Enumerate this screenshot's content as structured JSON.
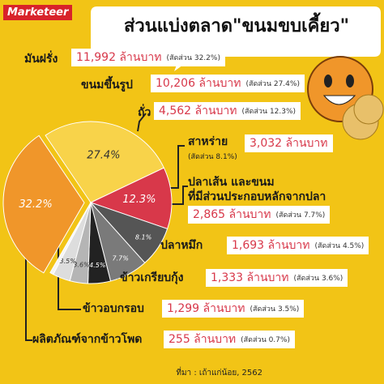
{
  "brand": "Marketeer",
  "source": "ที่มา : เถ้าแก่น้อย, 2562",
  "chart_data": {
    "type": "pie",
    "title": "ส่วนแบ่งตลาด\"ขนมขบเคี้ยว\"",
    "categories": [
      "มันฝรั่ง",
      "ขนมขึ้นรูป",
      "ถั่ว",
      "สาหร่าย",
      "ปลาเส้น และขนม\nที่มีส่วนประกอบหลักจากปลา",
      "ปลาหมึก",
      "ข้าวเกรียบกุ้ง",
      "ข้าวอบกรอบ",
      "ผลิตภัณฑ์จากข้าวโพด"
    ],
    "values": [
      32.2,
      27.4,
      12.3,
      8.1,
      7.7,
      4.5,
      3.6,
      3.5,
      0.7
    ],
    "value_labels": [
      "32.2%",
      "27.4%",
      "12.3%",
      "8.1%",
      "7.7%",
      "4.5%",
      "3.6%",
      "3.5%",
      null
    ],
    "amount_labels": [
      "11,992 ล้านบาท",
      "10,206 ล้านบาท",
      "4,562 ล้านบาท",
      "3,032 ล้านบาท",
      "2,865 ล้านบาท",
      "1,693 ล้านบาท",
      "1,333 ล้านบาท",
      "1,299 ล้านบาท",
      "255 ล้านบาท"
    ],
    "share_labels": [
      "(สัดส่วน 32.2%)",
      "(สัดส่วน 27.4%)",
      "(สัดส่วน 12.3%)",
      "(สัดส่วน 8.1%)",
      "(สัดส่วน 7.7%)",
      "(สัดส่วน 4.5%)",
      "(สัดส่วน 3.6%)",
      "(สัดส่วน 3.5%)",
      "(สัดส่วน 0.7%)"
    ],
    "colors": [
      "#f0962a",
      "#f8d34a",
      "#d8384a",
      "#555555",
      "#7a7a7a",
      "#222222",
      "#b5b5b5",
      "#dddddd",
      "#f5f5f5"
    ]
  }
}
